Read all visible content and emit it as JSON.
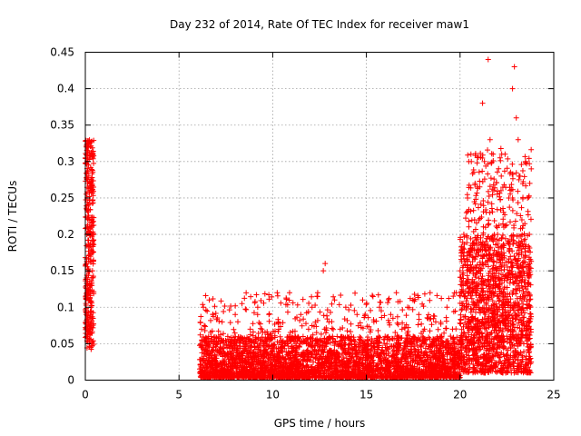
{
  "chart_data": {
    "type": "scatter",
    "title": "Day 232 of 2014, Rate Of TEC Index for receiver maw1",
    "xlabel": "GPS time / hours",
    "ylabel": "ROTI / TECUs",
    "xlim": [
      0,
      25
    ],
    "ylim": [
      0,
      0.45
    ],
    "x_ticks": [
      0,
      5,
      10,
      15,
      20,
      25
    ],
    "y_ticks": [
      0,
      0.05,
      0.1,
      0.15,
      0.2,
      0.25,
      0.3,
      0.35,
      0.4,
      0.45
    ],
    "x_tick_labels": [
      "0",
      "5",
      "10",
      "15",
      "20",
      "25"
    ],
    "y_tick_labels": [
      "0",
      "0.05",
      "0.1",
      "0.15",
      "0.2",
      "0.25",
      "0.3",
      "0.35",
      "0.4",
      "0.45"
    ],
    "grid": true,
    "marker": "+",
    "color": "#ff0000",
    "series": [
      {
        "name": "ROTI",
        "points": [
          [
            0.05,
            0.32
          ],
          [
            0.1,
            0.3
          ],
          [
            0.12,
            0.27
          ],
          [
            0.15,
            0.24
          ],
          [
            0.2,
            0.22
          ],
          [
            0.25,
            0.2
          ],
          [
            0.3,
            0.18
          ],
          [
            0.08,
            0.16
          ],
          [
            0.18,
            0.15
          ],
          [
            0.28,
            0.17
          ],
          [
            0.35,
            0.13
          ],
          [
            0.1,
            0.12
          ],
          [
            0.22,
            0.11
          ],
          [
            0.3,
            0.1
          ],
          [
            0.05,
            0.09
          ],
          [
            0.15,
            0.08
          ],
          [
            0.25,
            0.07
          ],
          [
            0.4,
            0.19
          ],
          [
            0.12,
            0.06
          ],
          [
            0.2,
            0.05
          ],
          [
            0.3,
            0.045
          ],
          [
            0.18,
            0.325
          ],
          [
            0.38,
            0.15
          ],
          [
            0.08,
            0.2
          ],
          [
            0.33,
            0.21
          ],
          [
            0.26,
            0.09
          ],
          [
            6.2,
            0.07
          ],
          [
            6.3,
            0.1
          ],
          [
            6.5,
            0.05
          ],
          [
            6.8,
            0.09
          ],
          [
            7.0,
            0.03
          ],
          [
            7.3,
            0.08
          ],
          [
            7.6,
            0.06
          ],
          [
            8.0,
            0.09
          ],
          [
            8.4,
            0.04
          ],
          [
            8.8,
            0.07
          ],
          [
            9.2,
            0.1
          ],
          [
            9.5,
            0.05
          ],
          [
            9.8,
            0.09
          ],
          [
            10.0,
            0.04
          ],
          [
            10.3,
            0.08
          ],
          [
            10.6,
            0.03
          ],
          [
            10.9,
            0.12
          ],
          [
            11.2,
            0.06
          ],
          [
            11.5,
            0.09
          ],
          [
            11.8,
            0.05
          ],
          [
            12.1,
            0.1
          ],
          [
            12.4,
            0.12
          ],
          [
            12.7,
            0.15
          ],
          [
            12.8,
            0.16
          ],
          [
            13.0,
            0.08
          ],
          [
            13.3,
            0.11
          ],
          [
            13.6,
            0.07
          ],
          [
            13.9,
            0.1
          ],
          [
            14.2,
            0.06
          ],
          [
            14.5,
            0.09
          ],
          [
            14.8,
            0.11
          ],
          [
            15.1,
            0.05
          ],
          [
            15.4,
            0.08
          ],
          [
            15.7,
            0.1
          ],
          [
            16.0,
            0.06
          ],
          [
            16.3,
            0.09
          ],
          [
            16.6,
            0.12
          ],
          [
            16.9,
            0.07
          ],
          [
            17.2,
            0.1
          ],
          [
            17.5,
            0.06
          ],
          [
            17.8,
            0.09
          ],
          [
            18.1,
            0.07
          ],
          [
            18.4,
            0.12
          ],
          [
            18.7,
            0.08
          ],
          [
            19.0,
            0.06
          ],
          [
            19.3,
            0.1
          ],
          [
            19.6,
            0.07
          ],
          [
            19.8,
            0.12
          ],
          [
            20.0,
            0.15
          ],
          [
            20.2,
            0.2
          ],
          [
            20.4,
            0.25
          ],
          [
            20.6,
            0.3
          ],
          [
            20.8,
            0.27
          ],
          [
            21.0,
            0.22
          ],
          [
            21.1,
            0.18
          ],
          [
            21.2,
            0.38
          ],
          [
            21.3,
            0.3
          ],
          [
            21.5,
            0.44
          ],
          [
            21.6,
            0.33
          ],
          [
            21.8,
            0.26
          ],
          [
            22.0,
            0.2
          ],
          [
            22.2,
            0.28
          ],
          [
            22.4,
            0.31
          ],
          [
            22.6,
            0.25
          ],
          [
            22.8,
            0.4
          ],
          [
            22.9,
            0.43
          ],
          [
            23.0,
            0.36
          ],
          [
            23.1,
            0.33
          ],
          [
            23.2,
            0.28
          ],
          [
            23.3,
            0.22
          ],
          [
            23.5,
            0.3
          ],
          [
            23.6,
            0.25
          ],
          [
            23.7,
            0.2
          ],
          [
            23.8,
            0.29
          ],
          [
            20.1,
            0.05
          ],
          [
            20.5,
            0.08
          ],
          [
            21.0,
            0.1
          ],
          [
            21.4,
            0.06
          ],
          [
            21.9,
            0.09
          ],
          [
            22.3,
            0.12
          ],
          [
            22.7,
            0.07
          ],
          [
            23.1,
            0.1
          ],
          [
            23.4,
            0.05
          ],
          [
            23.7,
            0.08
          ]
        ]
      }
    ],
    "dense_regions": [
      {
        "xmin": 0.0,
        "xmax": 0.45,
        "ymin": 0.04,
        "ymax": 0.33,
        "count": 320,
        "bias": 1.0
      },
      {
        "xmin": 6.1,
        "xmax": 20.0,
        "ymin": 0.003,
        "ymax": 0.06,
        "count": 2600,
        "bias": 1.6
      },
      {
        "xmin": 6.1,
        "xmax": 20.0,
        "ymin": 0.003,
        "ymax": 0.12,
        "count": 900,
        "bias": 2.2
      },
      {
        "xmin": 20.0,
        "xmax": 23.8,
        "ymin": 0.01,
        "ymax": 0.2,
        "count": 1200,
        "bias": 1.4
      },
      {
        "xmin": 20.3,
        "xmax": 23.8,
        "ymin": 0.05,
        "ymax": 0.32,
        "count": 450,
        "bias": 1.3
      }
    ]
  }
}
